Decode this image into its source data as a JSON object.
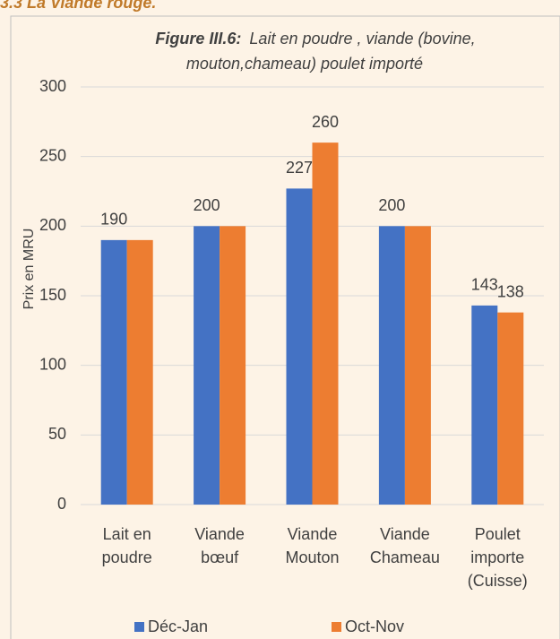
{
  "heading": "3.3 La Viande rouge.",
  "chart_data": {
    "type": "bar",
    "title_prefix": "Figure III.6:",
    "title_lines": [
      "Lait en poudre , viande (bovine,",
      "mouton,chameau) poulet importé"
    ],
    "y_label": "Prix en MRU",
    "categories": [
      [
        "Lait en",
        "poudre"
      ],
      [
        "Viande",
        "bœuf"
      ],
      [
        "Viande",
        "Mouton"
      ],
      [
        "Viande",
        "Chameau"
      ],
      [
        "Poulet",
        "importe",
        "(Cuisse)"
      ]
    ],
    "series": [
      {
        "name": "Déc-Jan",
        "color": "#4472c4",
        "values": [
          190,
          200,
          227,
          200,
          143
        ],
        "value_labels": [
          "190",
          "200",
          "227",
          "200",
          "143"
        ]
      },
      {
        "name": "Oct-Nov",
        "color": "#ed7d31",
        "values": [
          190,
          200,
          260,
          200,
          138
        ],
        "value_labels": [
          null,
          null,
          "260",
          null,
          "138"
        ]
      }
    ],
    "ylim": [
      0,
      300
    ],
    "yticks": [
      0,
      50,
      100,
      150,
      200,
      250,
      300
    ],
    "grid": true,
    "legend": "bottom"
  }
}
